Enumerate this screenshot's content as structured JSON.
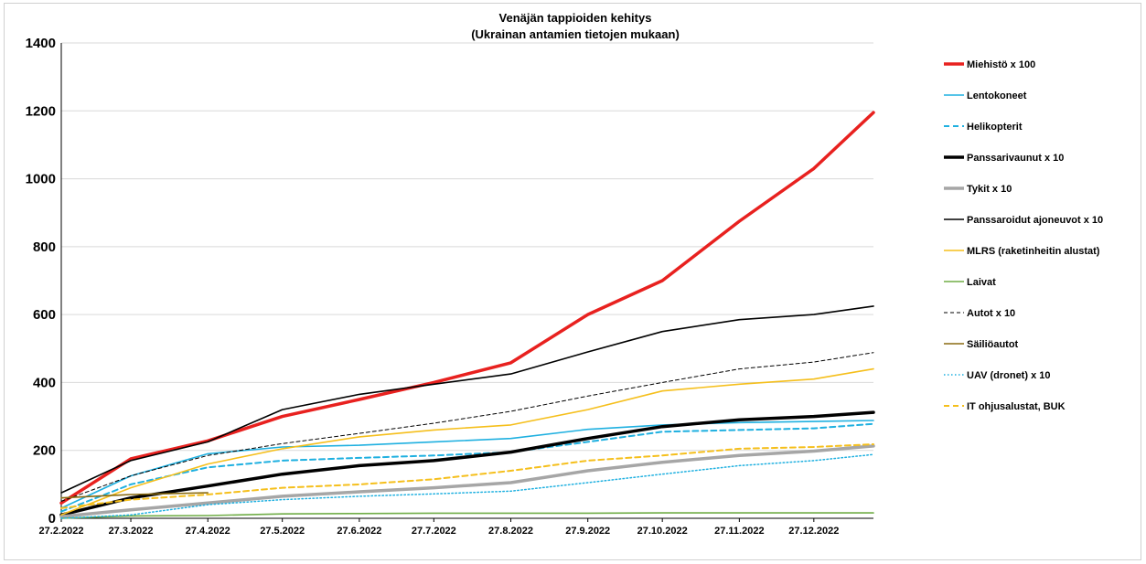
{
  "chart_data": {
    "type": "line",
    "title": "Venäjän tappioiden kehitys",
    "subtitle": "(Ukrainan antamien tietojen mukaan)",
    "xlabel": "",
    "ylabel": "",
    "ylim": [
      0,
      1400
    ],
    "yticks": [
      "0",
      "200",
      "400",
      "600",
      "800",
      "1000",
      "1200",
      "1400"
    ],
    "xlim": [
      "2022-02-27",
      "2023-01-20"
    ],
    "xtick_labels": [
      "27.2.2022",
      "27.3.2022",
      "27.4.2022",
      "27.5.2022",
      "27.6.2022",
      "27.7.2022",
      "27.8.2022",
      "27.9.2022",
      "27.10.2022",
      "27.11.2022",
      "27.12.2022"
    ],
    "grid": "horizontal",
    "legend_position": "right",
    "x": [
      "2022-02-27",
      "2022-03-27",
      "2022-04-27",
      "2022-05-27",
      "2022-06-27",
      "2022-07-27",
      "2022-08-27",
      "2022-09-27",
      "2022-10-27",
      "2022-11-27",
      "2022-12-27",
      "2023-01-20"
    ],
    "series": [
      {
        "name": "Miehistö x 100",
        "color": "#e8211f",
        "style": "solid-thick",
        "values": [
          45,
          175,
          228,
          300,
          350,
          400,
          458,
          600,
          700,
          875,
          1030,
          1195
        ]
      },
      {
        "name": "Lentokoneet",
        "color": "#1fb0e0",
        "style": "solid",
        "values": [
          30,
          125,
          190,
          210,
          215,
          225,
          235,
          262,
          275,
          282,
          285,
          288
        ]
      },
      {
        "name": "Helikopterit",
        "color": "#1fb0e0",
        "style": "dashed",
        "values": [
          20,
          100,
          150,
          170,
          178,
          185,
          195,
          225,
          255,
          260,
          265,
          278
        ]
      },
      {
        "name": "Panssarivaunut x 10",
        "color": "#000000",
        "style": "solid-thick",
        "values": [
          10,
          60,
          95,
          130,
          155,
          170,
          195,
          235,
          270,
          290,
          300,
          312
        ]
      },
      {
        "name": "Tykit x 10",
        "color": "#a6a6a6",
        "style": "solid-thick",
        "values": [
          5,
          25,
          45,
          65,
          78,
          90,
          105,
          140,
          165,
          185,
          198,
          213
        ]
      },
      {
        "name": "Panssaroidut ajoneuvot x 10",
        "color": "#000000",
        "style": "solid",
        "values": [
          75,
          170,
          225,
          320,
          365,
          395,
          425,
          490,
          550,
          585,
          600,
          625
        ]
      },
      {
        "name": "MLRS (raketinheitin alustat)",
        "color": "#f5bf1c",
        "style": "solid",
        "values": [
          10,
          90,
          160,
          205,
          240,
          260,
          275,
          320,
          375,
          395,
          410,
          440
        ]
      },
      {
        "name": "Laivat",
        "color": "#70ad47",
        "style": "solid",
        "values": [
          0,
          7,
          8,
          13,
          14,
          15,
          15,
          15,
          16,
          16,
          16,
          16
        ]
      },
      {
        "name": "Autot x 10",
        "color": "#000000",
        "style": "dashed-thin",
        "values": [
          50,
          125,
          185,
          220,
          250,
          280,
          315,
          360,
          400,
          440,
          460,
          488
        ]
      },
      {
        "name": "Säiliöautot",
        "color": "#8a6b10",
        "style": "solid",
        "values": [
          60,
          70,
          75,
          null,
          null,
          null,
          null,
          null,
          null,
          null,
          null,
          null
        ]
      },
      {
        "name": "UAV (dronet) x 10",
        "color": "#1fb0e0",
        "style": "dotted",
        "values": [
          0,
          10,
          40,
          55,
          65,
          72,
          80,
          105,
          130,
          155,
          170,
          188
        ]
      },
      {
        "name": "IT ohjusalustat, BUK",
        "color": "#f5bf1c",
        "style": "dashed",
        "values": [
          30,
          55,
          70,
          90,
          100,
          115,
          140,
          170,
          185,
          205,
          210,
          218
        ]
      }
    ]
  }
}
